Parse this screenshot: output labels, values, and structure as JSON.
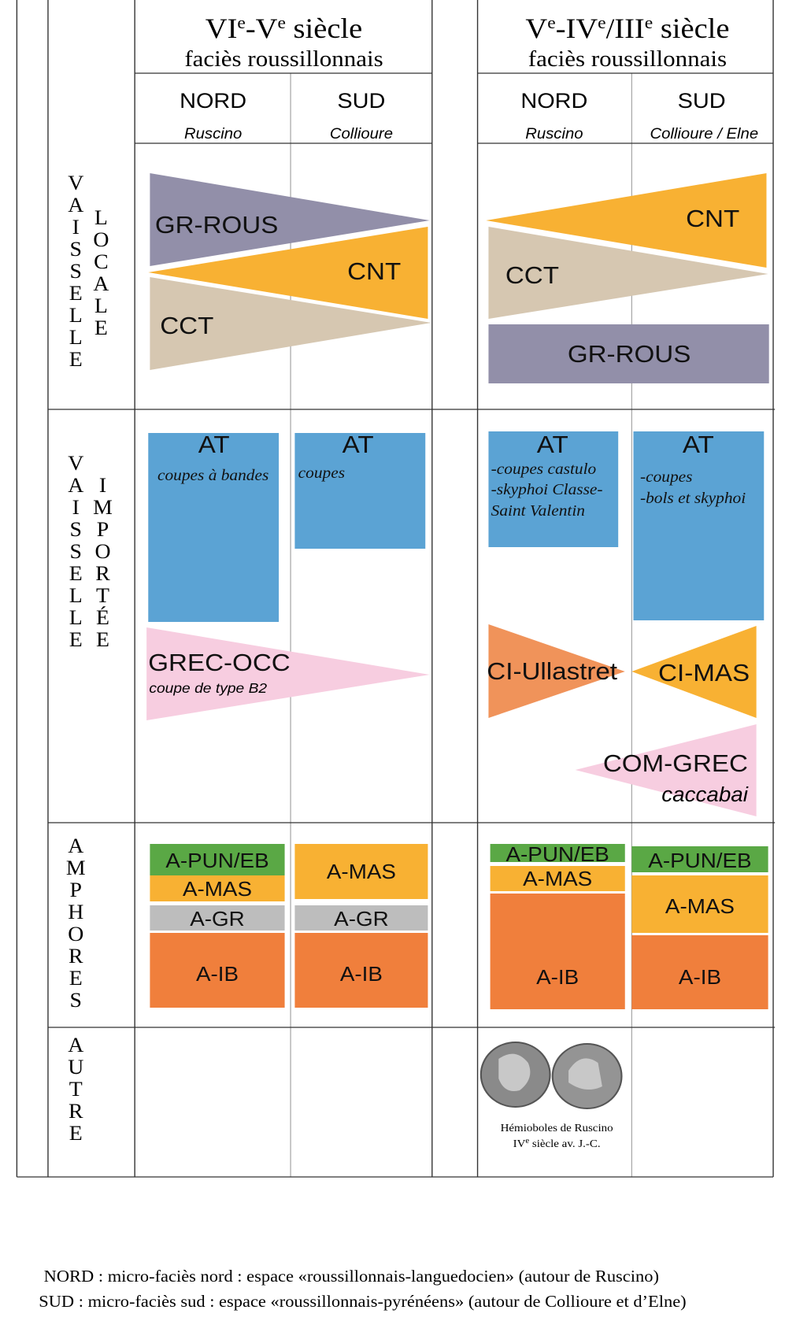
{
  "periods": [
    {
      "title": [
        "VI",
        "e",
        "-V",
        "e",
        " siècle"
      ],
      "subtitle": "faciès roussillonnais",
      "columns": [
        {
          "zone": "NORD",
          "site": "Ruscino"
        },
        {
          "zone": "SUD",
          "site": "Collioure"
        }
      ]
    },
    {
      "title": [
        "V",
        "e",
        "-IV",
        "e",
        "/III",
        "e",
        " siècle"
      ],
      "subtitle": "faciès roussillonnais",
      "columns": [
        {
          "zone": "NORD",
          "site": "Ruscino"
        },
        {
          "zone": "SUD",
          "site": "Collioure / Elne"
        }
      ]
    }
  ],
  "rows": [
    {
      "labels": [
        "VAISSELLE",
        "LOCALE"
      ]
    },
    {
      "labels": [
        "VAISSELLE",
        "IMPORTÉE"
      ]
    },
    {
      "labels": [
        "AMPHORES"
      ]
    },
    {
      "labels": [
        "AUTRE"
      ]
    }
  ],
  "shapes": [
    {
      "label": "GR-ROUS"
    },
    {
      "label": "CNT"
    },
    {
      "label": "CCT"
    },
    {
      "label": "CNT"
    },
    {
      "label": "CCT"
    },
    {
      "label": "GR-ROUS"
    },
    {
      "label": "AT",
      "notes": [
        "coupes à bandes"
      ]
    },
    {
      "label": "AT",
      "notes": [
        "coupes"
      ]
    },
    {
      "label": "AT",
      "notes": [
        "-coupes castulo",
        "-skyphoi Classe-",
        "Saint Valentin"
      ]
    },
    {
      "label": "AT",
      "notes": [
        "-coupes",
        "-bols et skyphoi"
      ]
    },
    {
      "label": "GREC-OCC",
      "notes": [
        "coupe de type B2"
      ]
    },
    {
      "label": "CI-Ullastret"
    },
    {
      "label": "CI-MAS"
    },
    {
      "label": "COM-GREC",
      "notes": [
        "caccabai"
      ]
    }
  ],
  "amphores": [
    [
      "A-PUN/EB",
      "A-MAS",
      "A-GR",
      "A-IB"
    ],
    [
      "A-MAS",
      "A-GR",
      "A-IB"
    ],
    [
      "A-PUN/EB",
      "A-MAS",
      "A-IB"
    ],
    [
      "A-PUN/EB",
      "A-MAS",
      "A-IB"
    ]
  ],
  "coins": {
    "caption": "Hémioboles de Ruscino",
    "date": [
      "IV",
      "e",
      " siècle av. J.-C."
    ]
  },
  "legend": [
    "NORD : micro-faciès nord : espace «roussillonnais-languedocien» (autour de Ruscino)",
    "SUD : micro-faciès sud : espace «roussillonnais-pyrénéens» (autour de Collioure et d’Elne)"
  ]
}
